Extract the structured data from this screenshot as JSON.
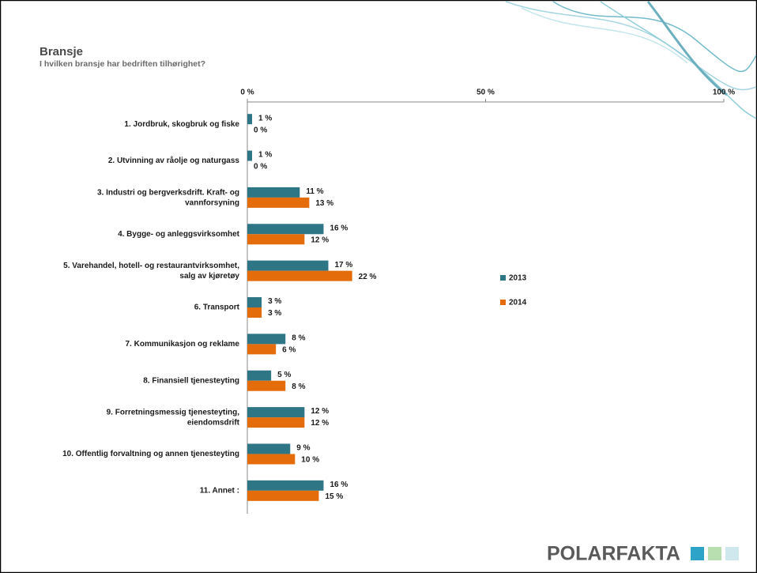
{
  "chart_data": {
    "type": "bar",
    "orientation": "horizontal",
    "title": "Bransje",
    "subtitle": "I hvilken bransje har bedriften tilhørighet?",
    "categories": [
      "1. Jordbruk, skogbruk og fiske",
      "2. Utvinning av råolje og naturgass",
      "3. Industri og bergverksdrift. Kraft- og\nvannforsyning",
      "4. Bygge- og anleggsvirksomhet",
      "5. Varehandel, hotell- og restaurantvirksomhet,\nsalg av kjøretøy",
      "6. Transport",
      "7. Kommunikasjon og reklame",
      "8. Finansiell tjenesteyting",
      "9. Forretningsmessig tjenesteyting,\neiendomsdrift",
      "10. Offentlig forvaltning og annen tjenesteyting",
      "11. Annet :"
    ],
    "series": [
      {
        "name": "2013",
        "color": "#2e7585",
        "values": [
          1,
          1,
          11,
          16,
          17,
          3,
          8,
          5,
          12,
          9,
          16
        ],
        "value_labels": [
          "1 %",
          "1 %",
          "11 %",
          "16 %",
          "17 %",
          "3 %",
          "8 %",
          "5 %",
          "12 %",
          "9 %",
          "16 %"
        ]
      },
      {
        "name": "2014",
        "color": "#e46c0a",
        "values": [
          0,
          0,
          13,
          12,
          22,
          3,
          6,
          8,
          12,
          10,
          15
        ],
        "value_labels": [
          "0 %",
          "0 %",
          "13 %",
          "12 %",
          "22 %",
          "3 %",
          "6 %",
          "8 %",
          "12 %",
          "10 %",
          "15 %"
        ]
      }
    ],
    "xlim": [
      0,
      100
    ],
    "xticks": [
      {
        "value": 0,
        "label": "0 %"
      },
      {
        "value": 50,
        "label": "50 %"
      },
      {
        "value": 100,
        "label": "100 %"
      }
    ],
    "legend": "right"
  },
  "logo": "POLARFAKTA"
}
